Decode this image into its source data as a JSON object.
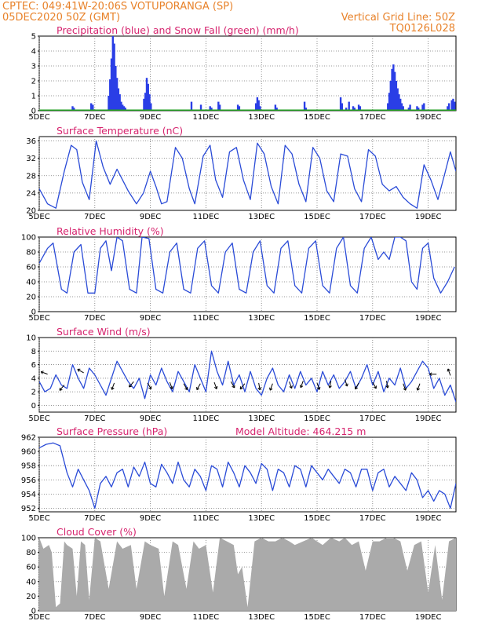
{
  "header": {
    "station": "CPTEC:  049:41W-20:06S  VOTUPORANGA (SP)",
    "run": "05DEC2020 50Z (GMT)",
    "grid_note": "Vertical Grid Line: 50Z",
    "model": "TQ0126L028"
  },
  "colors": {
    "header": "#e8822a",
    "title": "#d6246e",
    "line": "#2a4bd7",
    "bar": "#2a3ee6",
    "snow": "#20a020",
    "cloud": "#aaaaaa",
    "grid": "#777777"
  },
  "x_axis": {
    "start_day": 5,
    "end_day": 20,
    "labels": [
      "5DEC",
      "7DEC",
      "9DEC",
      "11DEC",
      "13DEC",
      "15DEC",
      "17DEC",
      "19DEC"
    ],
    "label_days": [
      5,
      7,
      9,
      11,
      13,
      15,
      17,
      19
    ]
  },
  "chart_data": [
    {
      "id": "precip",
      "type": "bar",
      "title": "Precipitation (blue) and Snow Fall (green) (mm/h)",
      "ylim": [
        0,
        5
      ],
      "yticks": [
        0,
        1,
        2,
        3,
        4,
        5
      ],
      "series": [
        {
          "name": "Precipitation",
          "x": [
            6.2,
            6.25,
            6.87,
            6.93,
            7.5,
            7.55,
            7.6,
            7.65,
            7.7,
            7.75,
            7.8,
            7.85,
            7.9,
            7.95,
            8.0,
            8.05,
            8.1,
            8.77,
            8.82,
            8.87,
            8.92,
            8.97,
            9.02,
            10.48,
            10.82,
            11.15,
            11.2,
            11.45,
            11.5,
            12.15,
            12.2,
            12.8,
            12.85,
            12.9,
            12.95,
            13.5,
            13.55,
            14.55,
            14.6,
            15.85,
            15.9,
            16.05,
            16.15,
            16.3,
            16.35,
            16.5,
            16.55,
            17.55,
            17.6,
            17.65,
            17.7,
            17.75,
            17.8,
            17.85,
            17.9,
            17.95,
            18.0,
            18.05,
            18.1,
            18.3,
            18.35,
            18.6,
            18.65,
            18.8,
            18.85,
            19.7,
            19.75,
            19.85,
            19.9,
            19.95
          ],
          "values": [
            0.3,
            0.2,
            0.5,
            0.4,
            1.0,
            2.1,
            3.5,
            5.0,
            4.5,
            3.0,
            2.2,
            1.5,
            1.1,
            0.6,
            0.4,
            0.3,
            0.2,
            0.8,
            1.2,
            2.2,
            1.8,
            1.1,
            0.5,
            0.6,
            0.4,
            0.3,
            0.2,
            0.6,
            0.4,
            0.4,
            0.3,
            0.5,
            0.9,
            0.7,
            0.3,
            0.4,
            0.2,
            0.6,
            0.2,
            0.9,
            0.5,
            0.2,
            0.6,
            0.3,
            0.2,
            0.4,
            0.3,
            0.5,
            1.2,
            2.0,
            2.8,
            3.1,
            2.6,
            2.0,
            1.5,
            1.1,
            0.8,
            0.5,
            0.3,
            0.2,
            0.4,
            0.3,
            0.2,
            0.4,
            0.5,
            0.3,
            0.5,
            0.7,
            0.8,
            0.6
          ]
        },
        {
          "name": "Snow Fall",
          "values": [
            0
          ]
        }
      ]
    },
    {
      "id": "temperature",
      "type": "line",
      "title": "Surface Temperature (nC)",
      "ylim": [
        20,
        37
      ],
      "yticks": [
        20,
        24,
        28,
        32,
        36
      ],
      "x": [
        5.0,
        5.3,
        5.6,
        5.9,
        6.15,
        6.35,
        6.55,
        6.8,
        7.05,
        7.3,
        7.55,
        7.8,
        8.0,
        8.2,
        8.5,
        8.75,
        9.0,
        9.2,
        9.4,
        9.6,
        9.9,
        10.15,
        10.4,
        10.6,
        10.9,
        11.15,
        11.35,
        11.6,
        11.85,
        12.1,
        12.35,
        12.6,
        12.85,
        13.1,
        13.35,
        13.6,
        13.85,
        14.1,
        14.35,
        14.6,
        14.85,
        15.1,
        15.35,
        15.6,
        15.85,
        16.1,
        16.35,
        16.6,
        16.85,
        17.1,
        17.35,
        17.6,
        17.85,
        18.1,
        18.35,
        18.6,
        18.85,
        19.1,
        19.35,
        19.6,
        19.8,
        20.0
      ],
      "values": [
        25.0,
        21.5,
        20.5,
        29.0,
        35.0,
        34.0,
        26.5,
        22.5,
        36.0,
        30.0,
        26.0,
        29.5,
        27.0,
        24.5,
        21.5,
        24.0,
        29.0,
        25.5,
        21.5,
        22.0,
        34.5,
        32.0,
        25.0,
        21.5,
        32.5,
        35.0,
        27.0,
        23.0,
        33.5,
        34.5,
        27.0,
        22.5,
        35.5,
        33.0,
        25.5,
        21.5,
        35.0,
        33.0,
        26.0,
        22.0,
        34.5,
        32.0,
        24.5,
        22.0,
        33.0,
        32.5,
        25.0,
        22.0,
        34.0,
        32.5,
        26.0,
        24.5,
        25.5,
        23.0,
        21.5,
        20.5,
        30.5,
        27.0,
        22.5,
        28.5,
        33.5,
        29.0
      ]
    },
    {
      "id": "humidity",
      "type": "line",
      "title": "Relative Humidity (%)",
      "ylim": [
        0,
        100
      ],
      "yticks": [
        0,
        20,
        40,
        60,
        80,
        100
      ],
      "x": [
        5.0,
        5.3,
        5.5,
        5.8,
        6.0,
        6.25,
        6.5,
        6.75,
        7.0,
        7.2,
        7.4,
        7.6,
        7.8,
        8.0,
        8.25,
        8.5,
        8.7,
        8.95,
        9.2,
        9.45,
        9.7,
        9.95,
        10.2,
        10.45,
        10.7,
        10.95,
        11.2,
        11.45,
        11.7,
        11.95,
        12.2,
        12.45,
        12.7,
        12.95,
        13.2,
        13.45,
        13.7,
        13.95,
        14.2,
        14.45,
        14.7,
        14.95,
        15.2,
        15.45,
        15.7,
        15.95,
        16.2,
        16.45,
        16.7,
        16.95,
        17.2,
        17.4,
        17.6,
        17.8,
        18.0,
        18.2,
        18.4,
        18.6,
        18.8,
        19.0,
        19.2,
        19.45,
        19.7,
        19.95
      ],
      "values": [
        65,
        85,
        92,
        30,
        25,
        80,
        90,
        25,
        25,
        85,
        95,
        55,
        100,
        95,
        30,
        25,
        100,
        98,
        30,
        25,
        80,
        92,
        30,
        25,
        85,
        95,
        35,
        25,
        80,
        92,
        30,
        25,
        80,
        95,
        35,
        25,
        85,
        95,
        35,
        25,
        85,
        95,
        35,
        25,
        85,
        100,
        35,
        25,
        85,
        100,
        70,
        80,
        70,
        100,
        100,
        95,
        40,
        30,
        85,
        92,
        45,
        25,
        40,
        60
      ]
    },
    {
      "id": "wind",
      "type": "line",
      "title": "Surface Wind (m/s)",
      "ylim": [
        -1,
        10
      ],
      "yticks": [
        0,
        2,
        4,
        6,
        8,
        10
      ],
      "x": [
        5.0,
        5.2,
        5.4,
        5.6,
        5.8,
        6.0,
        6.2,
        6.4,
        6.6,
        6.8,
        7.0,
        7.2,
        7.4,
        7.6,
        7.8,
        8.0,
        8.2,
        8.4,
        8.6,
        8.8,
        9.0,
        9.2,
        9.4,
        9.6,
        9.8,
        10.0,
        10.2,
        10.4,
        10.6,
        10.8,
        11.0,
        11.2,
        11.4,
        11.6,
        11.8,
        12.0,
        12.2,
        12.4,
        12.6,
        12.8,
        13.0,
        13.2,
        13.4,
        13.6,
        13.8,
        14.0,
        14.2,
        14.4,
        14.6,
        14.8,
        15.0,
        15.2,
        15.4,
        15.6,
        15.8,
        16.0,
        16.2,
        16.4,
        16.6,
        16.8,
        17.0,
        17.2,
        17.4,
        17.6,
        17.8,
        18.0,
        18.2,
        18.4,
        18.6,
        18.8,
        19.0,
        19.2,
        19.4,
        19.6,
        19.8,
        20.0
      ],
      "values": [
        3.5,
        2.0,
        2.5,
        4.5,
        3.0,
        2.5,
        6.0,
        4.0,
        2.5,
        5.5,
        4.5,
        3.0,
        1.5,
        4.0,
        6.5,
        5.0,
        3.5,
        2.5,
        4.0,
        1.0,
        4.5,
        3.0,
        5.5,
        3.5,
        2.0,
        5.0,
        3.5,
        2.0,
        6.0,
        4.0,
        2.0,
        8.0,
        5.0,
        3.0,
        6.5,
        3.0,
        4.5,
        2.0,
        5.0,
        2.5,
        1.5,
        4.0,
        5.5,
        3.0,
        2.0,
        4.5,
        2.5,
        5.0,
        3.0,
        4.0,
        2.0,
        5.0,
        3.0,
        4.5,
        2.5,
        3.5,
        5.0,
        2.5,
        4.0,
        6.0,
        3.0,
        5.0,
        2.0,
        4.0,
        3.0,
        5.5,
        2.5,
        3.5,
        5.0,
        6.5,
        5.5,
        2.5,
        4.0,
        1.5,
        3.0,
        0.5
      ],
      "arrows": {
        "x": [
          5.3,
          5.9,
          6.6,
          7.7,
          8.4,
          8.9,
          9.7,
          10.2,
          10.8,
          11.3,
          11.9,
          12.4,
          12.9,
          13.4,
          14.0,
          14.5,
          15.0,
          15.5,
          16.0,
          16.5,
          17.0,
          17.5,
          18.1,
          18.7,
          19.3,
          19.8
        ],
        "y": [
          4.6,
          3.0,
          4.8,
          3.3,
          3.5,
          3.3,
          3.4,
          3.2,
          3.2,
          3.4,
          3.5,
          3.2,
          3.3,
          3.2,
          3.5,
          3.6,
          3.3,
          3.6,
          3.8,
          3.3,
          3.4,
          3.6,
          3.2,
          3.2,
          4.6,
          4.4
        ],
        "dir": [
          -160,
          130,
          -150,
          110,
          130,
          60,
          70,
          60,
          120,
          70,
          60,
          130,
          80,
          110,
          70,
          110,
          70,
          100,
          70,
          120,
          60,
          80,
          70,
          110,
          180,
          -110
        ]
      }
    },
    {
      "id": "pressure",
      "type": "line",
      "title": "Surface Pressure (hPa)",
      "note": "Model Altitude: 464.215  m",
      "ylim": [
        951.5,
        962
      ],
      "yticks": [
        952,
        954,
        956,
        958,
        960,
        962
      ],
      "x": [
        5.0,
        5.25,
        5.5,
        5.75,
        6.0,
        6.2,
        6.4,
        6.6,
        6.8,
        7.0,
        7.2,
        7.4,
        7.6,
        7.8,
        8.0,
        8.2,
        8.4,
        8.6,
        8.8,
        9.0,
        9.2,
        9.4,
        9.6,
        9.8,
        10.0,
        10.2,
        10.4,
        10.6,
        10.8,
        11.0,
        11.2,
        11.4,
        11.6,
        11.8,
        12.0,
        12.2,
        12.4,
        12.6,
        12.8,
        13.0,
        13.2,
        13.4,
        13.6,
        13.8,
        14.0,
        14.2,
        14.4,
        14.6,
        14.8,
        15.0,
        15.2,
        15.4,
        15.6,
        15.8,
        16.0,
        16.2,
        16.4,
        16.6,
        16.8,
        17.0,
        17.2,
        17.4,
        17.6,
        17.8,
        18.0,
        18.2,
        18.4,
        18.6,
        18.8,
        19.0,
        19.2,
        19.4,
        19.6,
        19.8,
        20.0
      ],
      "values": [
        960.5,
        961.0,
        961.2,
        960.8,
        957.0,
        955.0,
        957.5,
        956.0,
        954.5,
        952.0,
        955.5,
        956.5,
        955.0,
        957.0,
        957.5,
        955.0,
        957.8,
        956.5,
        958.5,
        955.5,
        955.0,
        958.2,
        957.0,
        955.5,
        958.5,
        956.0,
        955.0,
        957.5,
        956.5,
        954.5,
        958.0,
        957.5,
        955.0,
        958.5,
        957.0,
        955.0,
        958.0,
        957.0,
        955.5,
        958.3,
        957.5,
        954.5,
        957.5,
        957.0,
        955.0,
        958.0,
        957.5,
        955.0,
        958.0,
        957.0,
        956.0,
        957.5,
        956.5,
        955.5,
        957.5,
        957.0,
        955.0,
        957.5,
        957.5,
        954.5,
        957.0,
        957.5,
        955.0,
        956.5,
        955.5,
        954.5,
        957.0,
        956.0,
        953.5,
        954.5,
        953.0,
        954.5,
        954.0,
        952.0,
        955.5
      ]
    },
    {
      "id": "cloud",
      "type": "area",
      "title": "Cloud Cover (%)",
      "ylim": [
        0,
        100
      ],
      "yticks": [
        0,
        20,
        40,
        60,
        80,
        100
      ],
      "x": [
        5.0,
        5.15,
        5.35,
        5.45,
        5.6,
        5.75,
        5.9,
        6.0,
        6.2,
        6.35,
        6.5,
        6.65,
        6.8,
        7.0,
        7.2,
        7.5,
        7.8,
        8.0,
        8.3,
        8.5,
        8.8,
        9.0,
        9.3,
        9.5,
        9.8,
        10.0,
        10.3,
        10.55,
        10.75,
        11.0,
        11.25,
        11.5,
        11.75,
        12.0,
        12.15,
        12.3,
        12.5,
        12.75,
        13.0,
        13.25,
        13.5,
        13.75,
        14.0,
        14.2,
        14.5,
        14.8,
        15.0,
        15.2,
        15.5,
        15.8,
        16.0,
        16.25,
        16.5,
        16.75,
        17.0,
        17.25,
        17.5,
        17.75,
        18.0,
        18.25,
        18.5,
        18.75,
        19.0,
        19.25,
        19.5,
        19.75,
        20.0
      ],
      "values": [
        100,
        85,
        90,
        80,
        5,
        10,
        95,
        90,
        85,
        20,
        95,
        90,
        15,
        100,
        95,
        30,
        95,
        85,
        90,
        30,
        95,
        90,
        85,
        20,
        95,
        90,
        30,
        95,
        85,
        90,
        25,
        100,
        95,
        90,
        50,
        60,
        5,
        95,
        100,
        95,
        95,
        100,
        95,
        90,
        95,
        100,
        95,
        90,
        100,
        95,
        100,
        90,
        95,
        55,
        95,
        95,
        100,
        100,
        95,
        55,
        90,
        95,
        25,
        90,
        15,
        95,
        100
      ]
    }
  ]
}
